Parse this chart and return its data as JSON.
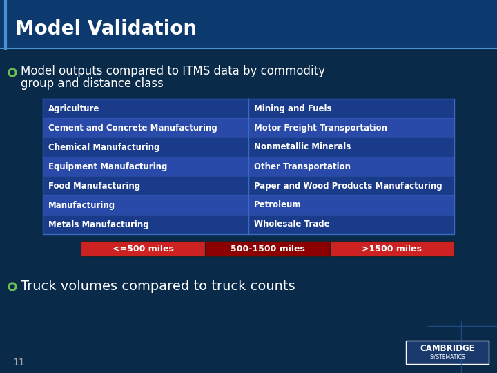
{
  "title": "Model Validation",
  "bg_color": "#0a2a4a",
  "title_bg_color": "#0d3a6e",
  "header_line_color": "#4a90d0",
  "title_text": "Model Validation",
  "title_color": "#ffffff",
  "bullet1_line1": "Model outputs compared to ITMS data by commodity",
  "bullet1_line2": "group and distance class",
  "bullet2_text": "Truck volumes compared to truck counts",
  "bullet_color": "#6dbf4f",
  "text_color": "#ffffff",
  "table_bg_dark": "#1a3a8a",
  "table_bg_medium": "#2a4aaa",
  "table_border": "#3a6ac0",
  "left_col": [
    "Agriculture",
    "Cement and Concrete Manufacturing",
    "Chemical Manufacturing",
    "Equipment Manufacturing",
    "Food Manufacturing",
    "Manufacturing",
    "Metals Manufacturing"
  ],
  "right_col": [
    "Mining and Fuels",
    "Motor Freight Transportation",
    "Nonmetallic Minerals",
    "Other Transportation",
    "Paper and Wood Products Manufacturing",
    "Petroleum",
    "Wholesale Trade"
  ],
  "legend_labels": [
    "<=500 miles",
    "500-1500 miles",
    ">1500 miles"
  ],
  "legend_colors": [
    "#cc2222",
    "#8b0000",
    "#cc2222"
  ],
  "legend_text_color": "#ffffff",
  "page_num": "11",
  "cambridge_text": "CAMBRIDGE",
  "cambridge_sub": "SYSTEMATICS"
}
